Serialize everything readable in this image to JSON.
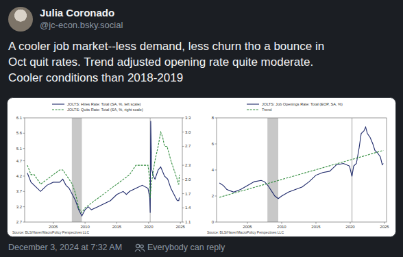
{
  "post": {
    "author": "Julia Coronado",
    "handle": "@jc-econ.bsky.social",
    "text": [
      "A cooler job market--less demand, less churn tho a bounce in",
      "Oct quit rates. Trend adjusted opening rate quite moderate.",
      "Cooler conditions than 2018-2019"
    ],
    "timestamp": "December 3, 2024 at 7:32 AM",
    "reply_setting": "Everybody can reply"
  },
  "chart_data": [
    {
      "type": "line",
      "legend": "top",
      "grid": false,
      "source": "Source: BLS/Haver/MacroPolicy Perspectives LLC",
      "xlim": [
        2000.5,
        2025.3
      ],
      "xticks": [
        2005,
        2010,
        2015,
        2020,
        2025
      ],
      "ylim": [
        2.7,
        6.1
      ],
      "yticks": [
        2.7,
        3.2,
        3.7,
        4.2,
        4.7,
        5.1,
        5.6,
        6.1
      ],
      "y2lim": [
        1.1,
        3.3
      ],
      "y2ticks": [
        1.1,
        1.4,
        1.7,
        {
          "value": 2,
          "label": "2.0"
        },
        2.3,
        2.7,
        {
          "value": 3,
          "label": "3.0"
        },
        3.3
      ],
      "shaded_ranges": [
        [
          2007.92,
          2009.5
        ],
        [
          2020.17,
          2020.33
        ]
      ],
      "series": [
        {
          "name": "JOLTS: Hires Rate: Total (SA, %, left scale)",
          "color": "#1f2a6b",
          "line_style": "solid",
          "x": [
            2000.92,
            2001.5,
            2002,
            2003,
            2003.5,
            2004,
            2005,
            2006,
            2006.5,
            2007,
            2007.5,
            2008,
            2008.5,
            2009,
            2009.5,
            2010,
            2010.5,
            2011,
            2012,
            2013,
            2014,
            2015,
            2016,
            2016.5,
            2017,
            2018,
            2019,
            2019.9,
            2020.17,
            2020.25,
            2020.33,
            2020.42,
            2020.5,
            2020.75,
            2021,
            2021.5,
            2021.9,
            2022.5,
            2023,
            2023.5,
            2024,
            2024.5,
            2024.75,
            2024.83
          ],
          "values": [
            4.3,
            4.0,
            3.9,
            3.7,
            3.8,
            3.9,
            4.0,
            4.0,
            4.1,
            3.9,
            3.8,
            3.6,
            3.4,
            3.1,
            2.9,
            3.1,
            3.2,
            3.1,
            3.2,
            3.3,
            3.4,
            3.6,
            3.7,
            3.6,
            3.7,
            3.8,
            3.9,
            3.8,
            3.5,
            3.0,
            6.0,
            5.0,
            4.4,
            4.2,
            4.1,
            4.4,
            4.5,
            4.2,
            4.1,
            3.8,
            3.6,
            3.4,
            3.4,
            3.5
          ]
        },
        {
          "name": "JOLTS: Quits Rate: Total (SA, %, right scale)",
          "color": "#2e8b3a",
          "line_style": "dashed",
          "axis": "y2",
          "x": [
            2000.92,
            2001.5,
            2002,
            2003,
            2004,
            2005,
            2006,
            2006.5,
            2007,
            2008,
            2008.5,
            2009,
            2009.5,
            2010,
            2011,
            2012,
            2013,
            2014,
            2015,
            2016,
            2017,
            2018,
            2019,
            2019.9,
            2020.17,
            2020.25,
            2020.42,
            2020.75,
            2021,
            2021.5,
            2021.9,
            2022.2,
            2022.5,
            2022.9,
            2023.5,
            2024,
            2024.5,
            2024.67,
            2024.75,
            2024.83
          ],
          "values": [
            2.3,
            2.1,
            2.1,
            1.9,
            2.0,
            2.1,
            2.2,
            2.2,
            2.1,
            1.9,
            1.7,
            1.4,
            1.3,
            1.4,
            1.5,
            1.6,
            1.7,
            1.8,
            1.9,
            2.0,
            2.1,
            2.3,
            2.3,
            2.3,
            2.0,
            1.6,
            1.9,
            2.2,
            2.4,
            2.7,
            3.0,
            2.9,
            2.7,
            2.7,
            2.4,
            2.2,
            2.0,
            1.9,
            1.9,
            2.1
          ]
        }
      ]
    },
    {
      "type": "line",
      "legend": "top",
      "grid": false,
      "source": "Source: BLS/Haver/MacroPolicy Perspectives LLC",
      "xlim": [
        2000.5,
        2025.3
      ],
      "xticks": [
        2005,
        2010,
        2015,
        2020,
        2025
      ],
      "ylim": [
        0,
        8
      ],
      "yticks": [
        0,
        2,
        4,
        6,
        8
      ],
      "shaded_ranges": [
        [
          2007.92,
          2009.5
        ],
        [
          2020.17,
          2020.33
        ]
      ],
      "series": [
        {
          "name": "JOLTS: Job Openings Rate: Total (EOP, SA, %)",
          "color": "#1f2a6b",
          "line_style": "solid",
          "x": [
            2000.92,
            2001.5,
            2002,
            2003,
            2004,
            2005,
            2006,
            2007,
            2007.5,
            2008,
            2008.5,
            2009,
            2009.5,
            2010,
            2011,
            2012,
            2013,
            2014,
            2015,
            2016,
            2017,
            2018,
            2019,
            2019.9,
            2020.25,
            2020.5,
            2020.9,
            2021.3,
            2021.6,
            2022,
            2022.25,
            2022.5,
            2022.9,
            2023.3,
            2023.6,
            2024,
            2024.4,
            2024.67,
            2024.83
          ],
          "values": [
            3.0,
            2.8,
            2.5,
            2.3,
            2.5,
            2.8,
            3.1,
            3.2,
            3.1,
            2.8,
            2.4,
            2.0,
            1.8,
            2.0,
            2.3,
            2.5,
            2.7,
            3.1,
            3.6,
            3.8,
            3.9,
            4.4,
            4.5,
            4.3,
            3.5,
            4.3,
            4.5,
            5.7,
            6.8,
            7.0,
            7.3,
            6.8,
            6.5,
            6.0,
            5.5,
            5.3,
            5.0,
            4.4,
            4.5
          ]
        },
        {
          "name": "Trend",
          "color": "#2e8b3a",
          "line_style": "dashed",
          "x": [
            2000.92,
            2024.83
          ],
          "values": [
            1.9,
            5.5
          ]
        }
      ]
    }
  ]
}
